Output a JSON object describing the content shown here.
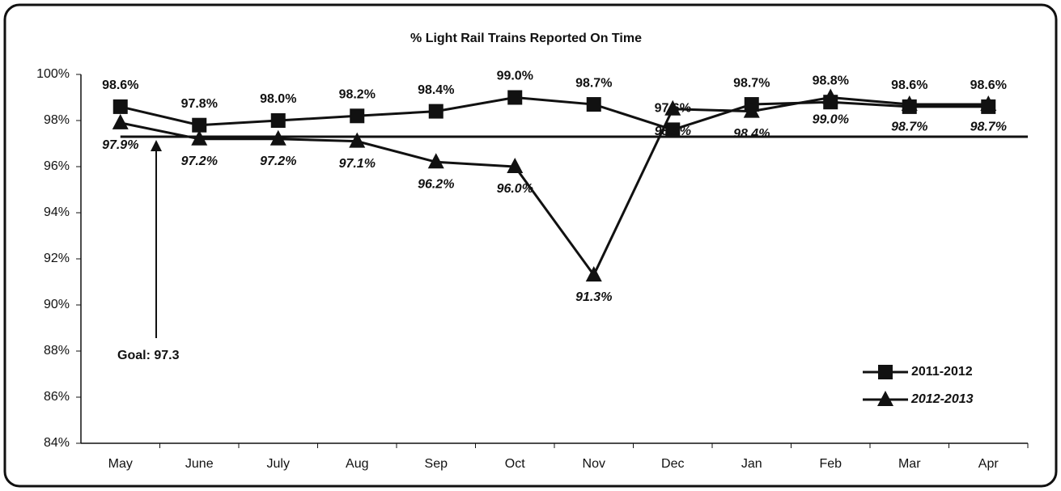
{
  "chart_data": {
    "type": "line",
    "title": "% Light Rail Trains Reported On Time",
    "categories": [
      "May",
      "June",
      "July",
      "Aug",
      "Sep",
      "Oct",
      "Nov",
      "Dec",
      "Jan",
      "Feb",
      "Mar",
      "Apr"
    ],
    "series": [
      {
        "name": "2011-2012",
        "color": "#111111",
        "marker": "square",
        "values": [
          98.6,
          97.8,
          98.0,
          98.2,
          98.4,
          99.0,
          98.7,
          97.6,
          98.7,
          98.8,
          98.6,
          98.6
        ],
        "value_labels": [
          "98.6%",
          "97.8%",
          "98.0%",
          "98.2%",
          "98.4%",
          "99.0%",
          "98.7%",
          "97.6%",
          "98.7%",
          "98.8%",
          "98.6%",
          "98.6%"
        ]
      },
      {
        "name": "2012-2013",
        "color": "#111111",
        "marker": "triangle",
        "values": [
          97.9,
          97.2,
          97.2,
          97.1,
          96.2,
          96.0,
          91.3,
          98.5,
          98.4,
          99.0,
          98.7,
          98.7
        ],
        "value_labels": [
          "97.9%",
          "97.2%",
          "97.2%",
          "97.1%",
          "96.2%",
          "96.0%",
          "91.3%",
          "98.5%",
          "98.4%",
          "99.0%",
          "98.7%",
          "98.7%"
        ]
      }
    ],
    "goal": {
      "value": 97.3,
      "label": "Goal: 97.3"
    },
    "ylim": [
      84,
      100
    ],
    "yticks": [
      {
        "value": 84,
        "label": "84%"
      },
      {
        "value": 86,
        "label": "86%"
      },
      {
        "value": 88,
        "label": "88%"
      },
      {
        "value": 90,
        "label": "90%"
      },
      {
        "value": 92,
        "label": "92%"
      },
      {
        "value": 94,
        "label": "94%"
      },
      {
        "value": 96,
        "label": "96%"
      },
      {
        "value": 98,
        "label": "98%"
      },
      {
        "value": 100,
        "label": "100%"
      }
    ],
    "grid": false,
    "legend": "lower right"
  }
}
